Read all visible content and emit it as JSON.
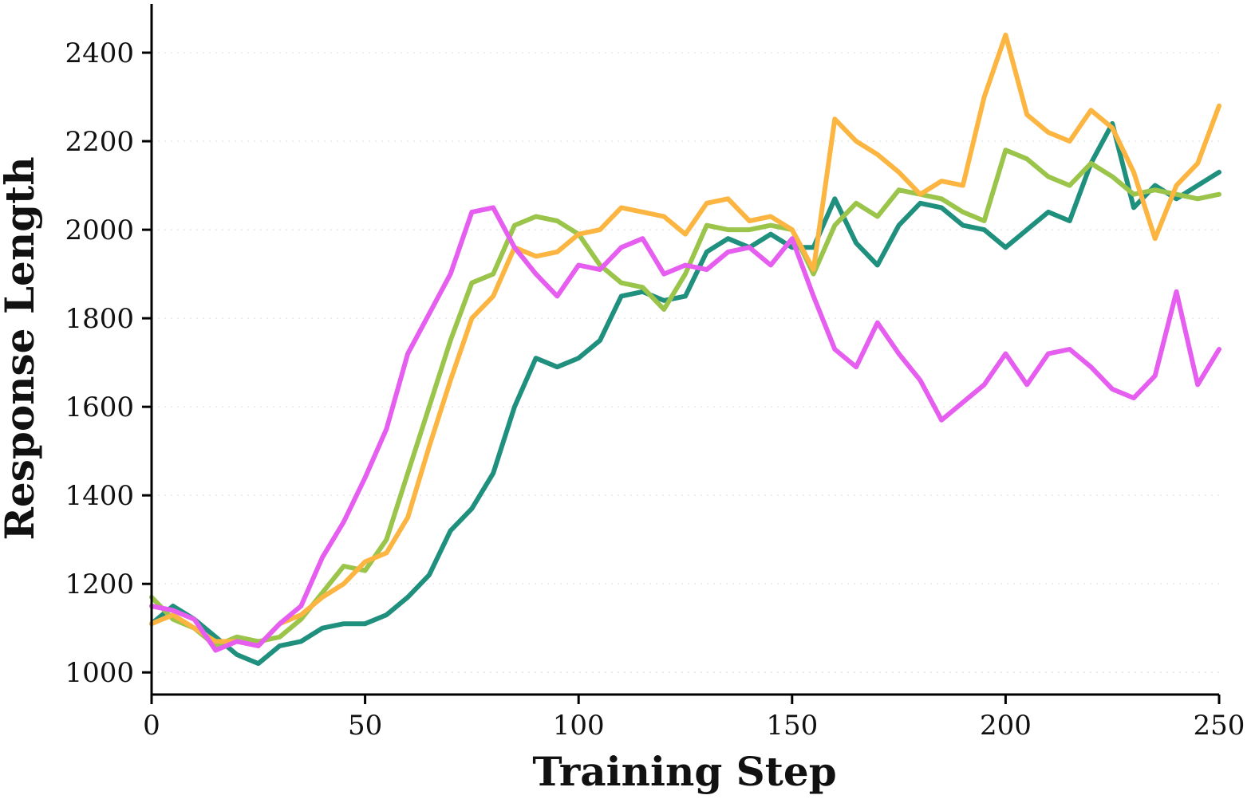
{
  "chart_data": {
    "type": "line",
    "title": "",
    "xlabel": "Training Step",
    "ylabel": "Response Length",
    "xlim": [
      0,
      250
    ],
    "ylim": [
      950,
      2510
    ],
    "xticks": [
      0,
      50,
      100,
      150,
      200,
      250
    ],
    "yticks": [
      1000,
      1200,
      1400,
      1600,
      1800,
      2000,
      2200,
      2400
    ],
    "grid": "horizontal dotted",
    "legend": "none",
    "series": [
      {
        "color": "#1f8f7e",
        "x": [
          0,
          5,
          10,
          15,
          20,
          25,
          30,
          35,
          40,
          45,
          50,
          55,
          60,
          65,
          70,
          75,
          80,
          85,
          90,
          95,
          100,
          105,
          110,
          115,
          120,
          125,
          130,
          135,
          140,
          145,
          150,
          155,
          160,
          165,
          170,
          175,
          180,
          185,
          190,
          195,
          200,
          205,
          210,
          215,
          220,
          225,
          230,
          235,
          240,
          245,
          250
        ],
        "y": [
          1110,
          1150,
          1120,
          1080,
          1040,
          1020,
          1060,
          1070,
          1100,
          1110,
          1110,
          1130,
          1170,
          1220,
          1320,
          1370,
          1450,
          1600,
          1710,
          1690,
          1710,
          1750,
          1850,
          1860,
          1840,
          1850,
          1950,
          1980,
          1960,
          1990,
          1960,
          1960,
          2070,
          1970,
          1920,
          2010,
          2060,
          2050,
          2010,
          2000,
          1960,
          2000,
          2040,
          2020,
          2150,
          2240,
          2050,
          2100,
          2070,
          2100,
          2130
        ]
      },
      {
        "color": "#9ac44a",
        "x": [
          0,
          5,
          10,
          15,
          20,
          25,
          30,
          35,
          40,
          45,
          50,
          55,
          60,
          65,
          70,
          75,
          80,
          85,
          90,
          95,
          100,
          105,
          110,
          115,
          120,
          125,
          130,
          135,
          140,
          145,
          150,
          155,
          160,
          165,
          170,
          175,
          180,
          185,
          190,
          195,
          200,
          205,
          210,
          215,
          220,
          225,
          230,
          235,
          240,
          245,
          250
        ],
        "y": [
          1170,
          1120,
          1100,
          1060,
          1080,
          1070,
          1080,
          1120,
          1180,
          1240,
          1230,
          1300,
          1450,
          1600,
          1750,
          1880,
          1900,
          2010,
          2030,
          2020,
          1990,
          1920,
          1880,
          1870,
          1820,
          1900,
          2010,
          2000,
          2000,
          2010,
          2000,
          1900,
          2010,
          2060,
          2030,
          2090,
          2080,
          2070,
          2040,
          2020,
          2180,
          2160,
          2120,
          2100,
          2150,
          2120,
          2080,
          2090,
          2080,
          2070,
          2080
        ]
      },
      {
        "color": "#fbb540",
        "x": [
          0,
          5,
          10,
          15,
          20,
          25,
          30,
          35,
          40,
          45,
          50,
          55,
          60,
          65,
          70,
          75,
          80,
          85,
          90,
          95,
          100,
          105,
          110,
          115,
          120,
          125,
          130,
          135,
          140,
          145,
          150,
          155,
          160,
          165,
          170,
          175,
          180,
          185,
          190,
          195,
          200,
          205,
          210,
          215,
          220,
          225,
          230,
          235,
          240,
          245,
          250
        ],
        "y": [
          1110,
          1130,
          1100,
          1070,
          1070,
          1060,
          1110,
          1130,
          1170,
          1200,
          1250,
          1270,
          1350,
          1510,
          1660,
          1800,
          1850,
          1960,
          1940,
          1950,
          1990,
          2000,
          2050,
          2040,
          2030,
          1990,
          2060,
          2070,
          2020,
          2030,
          2000,
          1910,
          2250,
          2200,
          2170,
          2130,
          2080,
          2110,
          2100,
          2300,
          2440,
          2260,
          2220,
          2200,
          2270,
          2230,
          2130,
          1980,
          2100,
          2150,
          2280
        ]
      },
      {
        "color": "#e65ef0",
        "x": [
          0,
          5,
          10,
          15,
          20,
          25,
          30,
          35,
          40,
          45,
          50,
          55,
          60,
          65,
          70,
          75,
          80,
          85,
          90,
          95,
          100,
          105,
          110,
          115,
          120,
          125,
          130,
          135,
          140,
          145,
          150,
          155,
          160,
          165,
          170,
          175,
          180,
          185,
          190,
          195,
          200,
          205,
          210,
          215,
          220,
          225,
          230,
          235,
          240,
          245,
          250
        ],
        "y": [
          1150,
          1140,
          1120,
          1050,
          1070,
          1060,
          1110,
          1150,
          1260,
          1340,
          1440,
          1550,
          1720,
          1810,
          1900,
          2040,
          2050,
          1960,
          1900,
          1850,
          1920,
          1910,
          1960,
          1980,
          1900,
          1920,
          1910,
          1950,
          1960,
          1920,
          1980,
          1850,
          1730,
          1690,
          1790,
          1720,
          1660,
          1570,
          1610,
          1650,
          1720,
          1650,
          1720,
          1730,
          1690,
          1640,
          1620,
          1670,
          1860,
          1650,
          1730
        ]
      }
    ]
  }
}
